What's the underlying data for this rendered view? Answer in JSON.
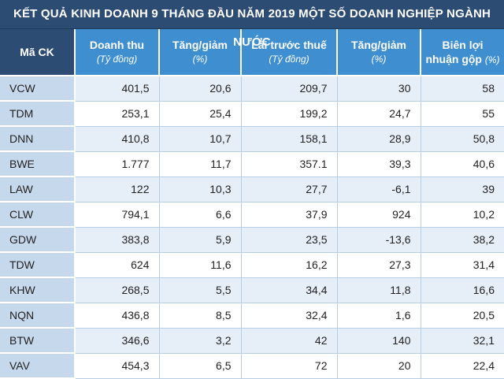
{
  "title": "KẾT QUẢ KINH DOANH 9 THÁNG ĐẦU NĂM 2019 MỘT SỐ DOANH NGHIỆP NGÀNH NƯỚC",
  "headers": {
    "code": "Mã CK",
    "revenue": {
      "label": "Doanh thu",
      "unit": "(Tỷ đồng)"
    },
    "revenue_change": {
      "label": "Tăng/giảm",
      "unit": "(%)"
    },
    "pretax_profit": {
      "label": "Lãi  trước thuế",
      "unit": "(Tỷ đồng)"
    },
    "profit_change": {
      "label": "Tăng/giảm",
      "unit": "(%)"
    },
    "gross_margin": {
      "label": "Biên lợi nhuận gộp",
      "unit": "(%)"
    }
  },
  "rows": [
    {
      "code": "VCW",
      "revenue": "401,5",
      "revenue_change": "20,6",
      "pretax_profit": "209,7",
      "profit_change": "30",
      "gross_margin": "58"
    },
    {
      "code": "TDM",
      "revenue": "253,1",
      "revenue_change": "25,4",
      "pretax_profit": "199,2",
      "profit_change": "24,7",
      "gross_margin": "55"
    },
    {
      "code": "DNN",
      "revenue": "410,8",
      "revenue_change": "10,7",
      "pretax_profit": "158,1",
      "profit_change": "28,9",
      "gross_margin": "50,8"
    },
    {
      "code": "BWE",
      "revenue": "1.777",
      "revenue_change": "11,7",
      "pretax_profit": "357.1",
      "profit_change": "39,3",
      "gross_margin": "40,6"
    },
    {
      "code": "LAW",
      "revenue": "122",
      "revenue_change": "10,3",
      "pretax_profit": "27,7",
      "profit_change": "-6,1",
      "gross_margin": "39"
    },
    {
      "code": "CLW",
      "revenue": "794,1",
      "revenue_change": "6,6",
      "pretax_profit": "37,9",
      "profit_change": "924",
      "gross_margin": "10,2"
    },
    {
      "code": "GDW",
      "revenue": "383,8",
      "revenue_change": "5,9",
      "pretax_profit": "23,5",
      "profit_change": "-13,6",
      "gross_margin": "38,2"
    },
    {
      "code": "TDW",
      "revenue": "624",
      "revenue_change": "11,6",
      "pretax_profit": "16,2",
      "profit_change": "27,3",
      "gross_margin": "31,4"
    },
    {
      "code": "KHW",
      "revenue": "268,5",
      "revenue_change": "5,5",
      "pretax_profit": "34,4",
      "profit_change": "11,8",
      "gross_margin": "16,6"
    },
    {
      "code": "NQN",
      "revenue": "436,8",
      "revenue_change": "8,5",
      "pretax_profit": "32,4",
      "profit_change": "1,6",
      "gross_margin": "20,5"
    },
    {
      "code": "BTW",
      "revenue": "346,6",
      "revenue_change": "3,2",
      "pretax_profit": "42",
      "profit_change": "140",
      "gross_margin": "32,1"
    },
    {
      "code": "VAV",
      "revenue": "454,3",
      "revenue_change": "6,5",
      "pretax_profit": "72",
      "profit_change": "20",
      "gross_margin": "22,4"
    }
  ],
  "colors": {
    "title_bg": "#2d4c73",
    "header_bg": "#3f8fd0",
    "code_col_bg": "#c6d8ec",
    "stripe_bg": "#e6eef7"
  }
}
